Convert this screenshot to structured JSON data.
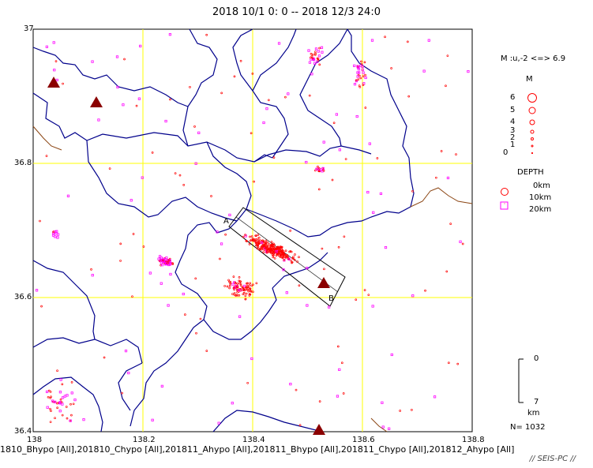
{
  "title": "2018 10/1  0: 0  --  2018 12/3 24:0",
  "axes": {
    "y_ticks": [
      "37",
      "36.8",
      "36.6",
      "36.4"
    ],
    "x_ticks": [
      "138",
      "138.2",
      "138.4",
      "138.6",
      "138.8"
    ]
  },
  "section": {
    "label_a": "A",
    "label_b": "B"
  },
  "legend": {
    "magnitude_range": "M :u,-2 <=> 6.9",
    "m_header": "M",
    "m_levels": [
      "6",
      "5",
      "4",
      "3",
      "2",
      "1",
      "0"
    ],
    "depth_header": "DEPTH",
    "depth_levels": [
      "0km",
      "10km",
      "20km"
    ]
  },
  "scale_bar": {
    "top": "0",
    "bottom": "7",
    "unit": "km"
  },
  "count_label": "N=  1032",
  "footer_sources": "1810_Bhypo [All],201810_Chypo [All],201811_Ahypo [All],201811_Bhypo [All],201811_Chypo [All],201812_Ahypo [All]",
  "brand": "// SEIS-PC //",
  "colors": {
    "grid": "#ffff00",
    "boundary": "#00008b",
    "coast": "#8b4513",
    "shallow": "#ff0000",
    "deep": "#ff00ff",
    "volcano": "#8b0000"
  },
  "volcano_icon": "triangle-icon"
}
